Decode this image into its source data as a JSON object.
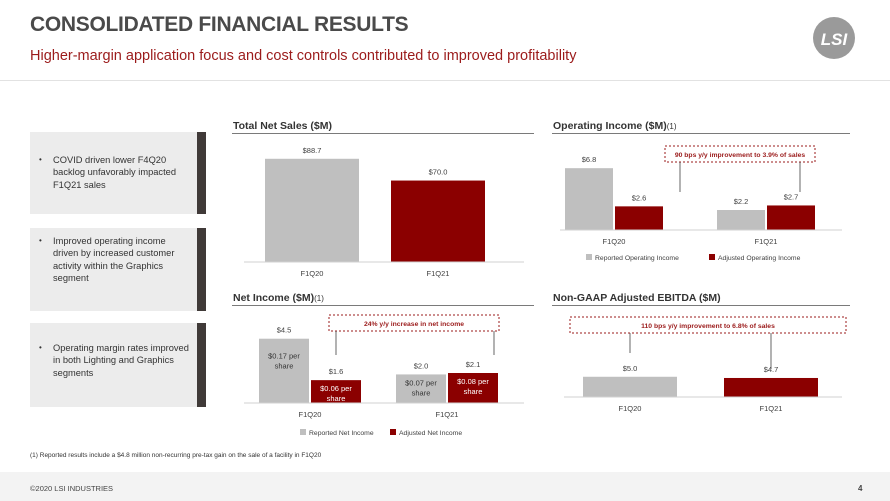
{
  "header": {
    "title": "CONSOLIDATED FINANCIAL RESULTS",
    "subtitle": "Higher-margin application focus and cost controls contributed to improved profitability",
    "logo_text": "LSI"
  },
  "bullets": [
    {
      "marker": "•",
      "text": "COVID driven lower F4Q20 backlog unfavorably impacted F1Q21 sales"
    },
    {
      "marker": "•",
      "text": "Improved operating income driven by increased customer activity within the Graphics segment"
    },
    {
      "marker": "•",
      "text": "Operating margin rates improved in both Lighting and Graphics segments"
    }
  ],
  "panels": {
    "net_sales": {
      "title": "Total Net Sales ($M)"
    },
    "op_income": {
      "title": "Operating Income ($M)",
      "footnote_marker": "(1)"
    },
    "net_income": {
      "title": "Net Income ($M)",
      "footnote_marker": "(1)"
    },
    "ebitda": {
      "title": "Non-GAAP Adjusted EBITDA ($M)"
    }
  },
  "colors": {
    "reported": "#bfbfbf",
    "adjusted": "#8b0000",
    "accent": "#9b1b1b"
  },
  "chart_data": [
    {
      "id": "net_sales",
      "type": "bar",
      "categories": [
        "F1Q20",
        "F1Q21"
      ],
      "values": [
        88.7,
        70.0
      ],
      "value_labels": [
        "$88.7",
        "$70.0"
      ],
      "ylim": [
        0,
        110
      ]
    },
    {
      "id": "op_income",
      "type": "bar",
      "categories": [
        "F1Q20",
        "F1Q21"
      ],
      "series": [
        {
          "name": "Reported Operating Income",
          "values": [
            6.8,
            2.2
          ],
          "labels": [
            "$6.8",
            "$2.2"
          ]
        },
        {
          "name": "Adjusted Operating Income",
          "values": [
            2.6,
            2.7
          ],
          "labels": [
            "$2.6",
            "$2.7"
          ]
        }
      ],
      "ylim": [
        0,
        8.8
      ],
      "legend": "bottom",
      "annotation": "90 bps y/y improvement to 3.9% of sales"
    },
    {
      "id": "net_income",
      "type": "bar",
      "categories": [
        "F1Q20",
        "F1Q21"
      ],
      "series": [
        {
          "name": "Reported Net Income",
          "values": [
            4.5,
            2.0
          ],
          "labels": [
            "$4.5",
            "$2.0"
          ],
          "per_share": [
            "$0.17 per share",
            "$0.07 per share"
          ]
        },
        {
          "name": "Adjusted Net Income",
          "values": [
            1.6,
            2.1
          ],
          "labels": [
            "$1.6",
            "$2.1"
          ],
          "per_share": [
            "$0.06 per share",
            "$0.08 per share"
          ]
        }
      ],
      "ylim": [
        0,
        5.6
      ],
      "legend": "bottom",
      "annotation": "24% y/y increase in net income"
    },
    {
      "id": "ebitda",
      "type": "bar",
      "categories": [
        "F1Q20",
        "F1Q21"
      ],
      "values": [
        5.0,
        4.7
      ],
      "value_labels": [
        "$5.0",
        "$4.7"
      ],
      "ylim": [
        0,
        21
      ],
      "annotation": "110 bps y/y improvement to 6.8% of sales"
    }
  ],
  "footnote": "(1)  Reported results include a $4.8 million non-recurring pre-tax gain on the sale of a facility in F1Q20",
  "footer": {
    "copyright": "©2020 LSI INDUSTRIES",
    "page_number": "4"
  }
}
